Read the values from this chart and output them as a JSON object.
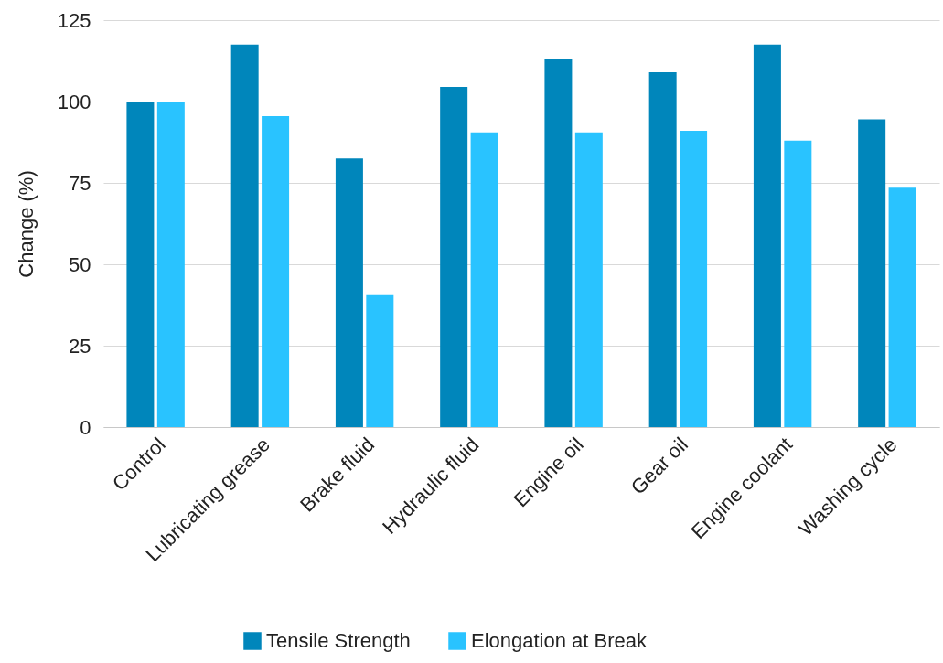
{
  "chart_data": {
    "type": "bar",
    "ylabel": "Change (%)",
    "categories": [
      "Control",
      "Lubricating grease",
      "Brake fluid",
      "Hydraulic fluid",
      "Engine oil",
      "Gear oil",
      "Engine coolant",
      "Washing cycle"
    ],
    "series": [
      {
        "name": "Tensile Strength",
        "color": "#0086bb",
        "values": [
          100,
          117.5,
          82.5,
          104.5,
          113,
          109,
          117.5,
          94.5
        ]
      },
      {
        "name": "Elongation at Break",
        "color": "#29c3ff",
        "values": [
          100,
          95.5,
          40.5,
          90.5,
          90.5,
          91,
          88,
          73.5
        ]
      }
    ],
    "ylim": [
      0,
      125
    ],
    "yticks": [
      0,
      25,
      50,
      75,
      100,
      125
    ],
    "grid": "y",
    "legend": "bottom"
  }
}
